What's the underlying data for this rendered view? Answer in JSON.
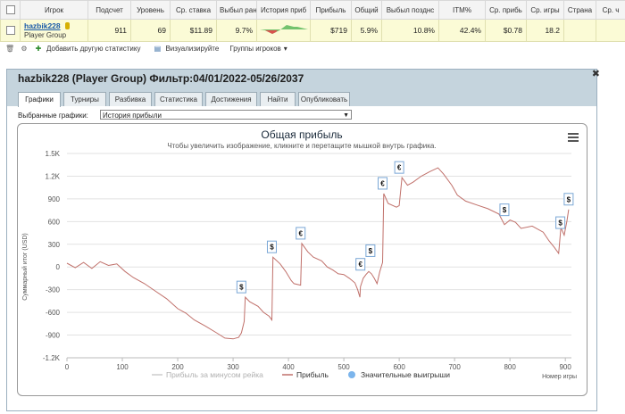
{
  "table": {
    "headers": [
      "",
      "Игрок",
      "Подсчет",
      "Уровень",
      "Ср. ставка",
      "Выбыл ран",
      "История приб",
      "Прибыль",
      "Общий",
      "Выбыл позднс",
      "ITM%",
      "Ср. прибь",
      "Ср. игры",
      "Страна",
      "Ср. ч"
    ],
    "row": {
      "player": "hazbik228",
      "group": "Player Group",
      "count": "911",
      "level": "69",
      "avg_stake": "$11.89",
      "early_out": "9.7%",
      "profit": "$719",
      "total": "5.9%",
      "late_out": "10.8%",
      "itm": "42.4%",
      "avg_profit": "$0.78",
      "avg_games": "18.2",
      "country": "",
      "avg_time": ""
    }
  },
  "toolbar": {
    "add_stats_label": "Добавить другую статистику",
    "visualize_label": "Визуализируйте",
    "groups_label": "Группы игроков"
  },
  "panel": {
    "title": "hazbik228 (Player Group) Фильтр:04/01/2022-05/26/2037",
    "tabs": [
      "Графики",
      "Турниры",
      "Разбивка",
      "Статистика",
      "Достижения",
      "Найти",
      "Опубликовать"
    ],
    "active_tab": "Графики",
    "chart_select_label": "Выбранные графики:",
    "chart_select_value": "История прибыли"
  },
  "chart_data": {
    "type": "line",
    "title": "Общая прибыль",
    "subtitle": "Чтобы увеличить изображение, кликните и перетащите мышкой внутрь графика.",
    "xlabel": "Номер игры",
    "ylabel": "Суммарный итог (USD)",
    "xlim": [
      0,
      911
    ],
    "ylim": [
      -1200,
      1500
    ],
    "x_ticks": [
      "0",
      "100",
      "200",
      "300",
      "400",
      "500",
      "600",
      "700",
      "800",
      "900"
    ],
    "y_ticks": [
      "1.5K",
      "1.2K",
      "900",
      "600",
      "300",
      "0",
      "-300",
      "-600",
      "-900",
      "-1.2K"
    ],
    "grid": true,
    "legend_position": "bottom",
    "series": [
      {
        "name": "Прибыль",
        "color": "#c0706a",
        "points": [
          [
            0,
            50
          ],
          [
            15,
            -10
          ],
          [
            30,
            60
          ],
          [
            45,
            -20
          ],
          [
            60,
            70
          ],
          [
            75,
            20
          ],
          [
            90,
            40
          ],
          [
            105,
            -60
          ],
          [
            120,
            -140
          ],
          [
            140,
            -220
          ],
          [
            160,
            -320
          ],
          [
            180,
            -420
          ],
          [
            200,
            -550
          ],
          [
            215,
            -610
          ],
          [
            230,
            -700
          ],
          [
            250,
            -780
          ],
          [
            270,
            -870
          ],
          [
            285,
            -940
          ],
          [
            300,
            -950
          ],
          [
            310,
            -930
          ],
          [
            315,
            -870
          ],
          [
            320,
            -720
          ],
          [
            322,
            -400
          ],
          [
            330,
            -460
          ],
          [
            345,
            -520
          ],
          [
            355,
            -600
          ],
          [
            365,
            -650
          ],
          [
            370,
            -700
          ],
          [
            372,
            130
          ],
          [
            385,
            40
          ],
          [
            395,
            -60
          ],
          [
            405,
            -180
          ],
          [
            410,
            -220
          ],
          [
            422,
            -240
          ],
          [
            424,
            310
          ],
          [
            435,
            200
          ],
          [
            445,
            130
          ],
          [
            460,
            80
          ],
          [
            470,
            0
          ],
          [
            480,
            -40
          ],
          [
            490,
            -90
          ],
          [
            500,
            -100
          ],
          [
            510,
            -150
          ],
          [
            520,
            -210
          ],
          [
            525,
            -300
          ],
          [
            529,
            -400
          ],
          [
            530,
            -260
          ],
          [
            535,
            -150
          ],
          [
            540,
            -100
          ],
          [
            545,
            -60
          ],
          [
            550,
            -90
          ],
          [
            555,
            -150
          ],
          [
            560,
            -220
          ],
          [
            565,
            -60
          ],
          [
            570,
            60
          ],
          [
            572,
            970
          ],
          [
            580,
            840
          ],
          [
            595,
            790
          ],
          [
            600,
            810
          ],
          [
            605,
            1180
          ],
          [
            615,
            1080
          ],
          [
            625,
            1120
          ],
          [
            640,
            1200
          ],
          [
            655,
            1260
          ],
          [
            670,
            1310
          ],
          [
            680,
            1230
          ],
          [
            695,
            1080
          ],
          [
            705,
            950
          ],
          [
            720,
            870
          ],
          [
            740,
            820
          ],
          [
            760,
            770
          ],
          [
            780,
            700
          ],
          [
            790,
            560
          ],
          [
            800,
            620
          ],
          [
            810,
            590
          ],
          [
            820,
            510
          ],
          [
            840,
            540
          ],
          [
            860,
            460
          ],
          [
            870,
            350
          ],
          [
            880,
            260
          ],
          [
            888,
            180
          ],
          [
            892,
            520
          ],
          [
            898,
            420
          ],
          [
            903,
            610
          ],
          [
            906,
            760
          ]
        ]
      }
    ],
    "legend": [
      {
        "label": "Прибыль за минусом рейка",
        "color": "#cccccc"
      },
      {
        "label": "Прибыль",
        "color": "#c0706a"
      },
      {
        "label": "Значительные выигрыши",
        "color": "#7cb5ec"
      }
    ],
    "markers": [
      {
        "x": 315,
        "y": -400,
        "symbol": "$"
      },
      {
        "x": 370,
        "y": 130,
        "symbol": "$"
      },
      {
        "x": 422,
        "y": 310,
        "symbol": "€"
      },
      {
        "x": 530,
        "y": -100,
        "symbol": "€"
      },
      {
        "x": 548,
        "y": 80,
        "symbol": "$"
      },
      {
        "x": 570,
        "y": 970,
        "symbol": "€"
      },
      {
        "x": 600,
        "y": 1180,
        "symbol": "€"
      },
      {
        "x": 790,
        "y": 620,
        "symbol": "$"
      },
      {
        "x": 891,
        "y": 450,
        "symbol": "$"
      },
      {
        "x": 906,
        "y": 760,
        "symbol": "$"
      }
    ]
  }
}
